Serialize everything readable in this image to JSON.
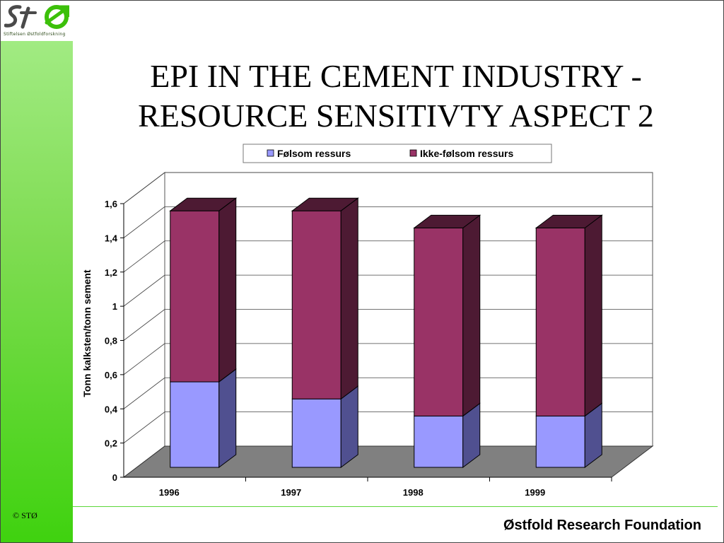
{
  "logo": {
    "mark_text": "STØ",
    "tagline": "Stiftelsen Østfoldforskning"
  },
  "sidebar": {
    "copyright": "© STØ"
  },
  "title": {
    "line1": "EPI IN THE CEMENT INDUSTRY -",
    "line2": "RESOURCE SENSITIVTY ASPECT 2"
  },
  "footer": {
    "text": "Østfold Research Foundation"
  },
  "colors": {
    "series1_front": "#9999ff",
    "series1_side": "#505090",
    "series2_front": "#993366",
    "series2_side": "#4d1a33",
    "floor": "#808080",
    "sidebar": "#7fdc52"
  },
  "chart_data": {
    "type": "bar",
    "stacked": true,
    "three_d": true,
    "categories": [
      "1996",
      "1997",
      "1998",
      "1999"
    ],
    "series": [
      {
        "name": "Følsom ressurs",
        "values": [
          0.5,
          0.4,
          0.3,
          0.3
        ]
      },
      {
        "name": "Ikke-følsom ressurs",
        "values": [
          1.0,
          1.1,
          1.1,
          1.1
        ]
      }
    ],
    "ylabel": "Tonn kalksten/tonn sement",
    "ylim": [
      0,
      1.6
    ],
    "yticks": [
      "0",
      "0,2",
      "0,4",
      "0,6",
      "0,8",
      "1",
      "1,2",
      "1,4",
      "1,6"
    ],
    "grid": true,
    "legend_position": "top"
  }
}
